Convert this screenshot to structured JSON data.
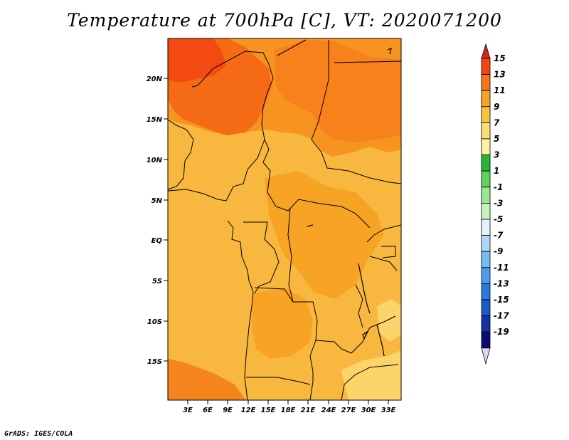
{
  "title": "Temperature at 700hPa [C], VT: 2020071200",
  "credit": "GrADS: IGES/COLA",
  "map": {
    "lat_labels": [
      "20N",
      "15N",
      "10N",
      "5N",
      "EQ",
      "5S",
      "10S",
      "15S"
    ],
    "lon_labels": [
      "3E",
      "6E",
      "9E",
      "12E",
      "15E",
      "18E",
      "21E",
      "24E",
      "27E",
      "30E",
      "33E"
    ]
  },
  "colorbar": {
    "labels": [
      "15",
      "13",
      "11",
      "9",
      "7",
      "5",
      "3",
      "1",
      "-1",
      "-3",
      "-5",
      "-7",
      "-9",
      "-11",
      "-13",
      "-15",
      "-17",
      "-19"
    ],
    "colors": {
      "top_arrow": "#d7271b",
      "bands": [
        "#f24514",
        "#f5731b",
        "#f7a324",
        "#fac23f",
        "#fbdf76",
        "#fdf2a4",
        "#27b43a",
        "#5fd15d",
        "#9be692",
        "#c8f1c3",
        "#e2f4f9",
        "#aed7f6",
        "#78bcf1",
        "#4c9ce9",
        "#2b79df",
        "#1d58c9",
        "#1530a5",
        "#0b0b70"
      ],
      "bottom_arrow": "#dcd6f3"
    }
  }
}
